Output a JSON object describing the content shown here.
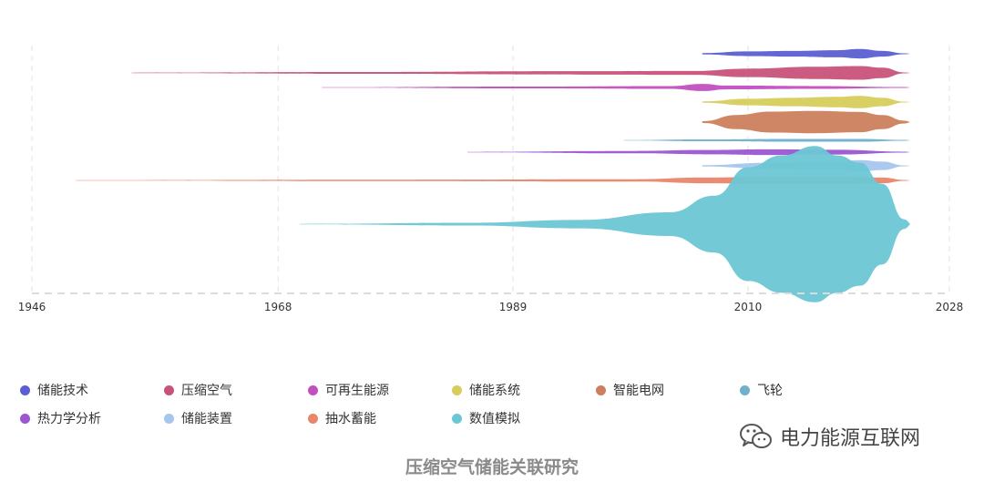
{
  "chart_data": {
    "type": "streamgraph",
    "title": "",
    "xlabel": "",
    "ylabel": "",
    "xlim": [
      1946,
      2028
    ],
    "x_ticks": [
      "1946",
      "1968",
      "1989",
      "2010",
      "2028"
    ],
    "grid": true,
    "legend_position": "bottom",
    "series": [
      {
        "name": "储能技术",
        "color": "#5b5fd2",
        "start": 2006,
        "points": [
          [
            2006,
            0.3
          ],
          [
            2010,
            1.0
          ],
          [
            2014,
            1.2
          ],
          [
            2018,
            1.5
          ],
          [
            2020,
            2.0
          ],
          [
            2022,
            1.2
          ],
          [
            2024,
            0.2
          ]
        ]
      },
      {
        "name": "压缩空气",
        "color": "#c9527a",
        "start": 1955,
        "points": [
          [
            1955,
            0.1
          ],
          [
            1975,
            0.4
          ],
          [
            1995,
            0.7
          ],
          [
            2005,
            0.8
          ],
          [
            2010,
            1.8
          ],
          [
            2016,
            2.6
          ],
          [
            2020,
            2.9
          ],
          [
            2022,
            2.2
          ],
          [
            2024,
            0.2
          ]
        ]
      },
      {
        "name": "可再生能源",
        "color": "#c24fbf",
        "start": 1972,
        "points": [
          [
            1972,
            0.1
          ],
          [
            1990,
            0.4
          ],
          [
            2003,
            0.6
          ],
          [
            2006,
            1.5
          ],
          [
            2008,
            0.8
          ],
          [
            2016,
            0.6
          ],
          [
            2024,
            0.2
          ]
        ]
      },
      {
        "name": "储能系统",
        "color": "#d6cd5a",
        "start": 2006,
        "points": [
          [
            2006,
            0.3
          ],
          [
            2010,
            1.4
          ],
          [
            2014,
            1.8
          ],
          [
            2018,
            2.2
          ],
          [
            2020,
            2.6
          ],
          [
            2022,
            1.8
          ],
          [
            2024,
            0.2
          ]
        ]
      },
      {
        "name": "智能电网",
        "color": "#cc7f5c",
        "start": 2006,
        "points": [
          [
            2006,
            0.4
          ],
          [
            2009,
            3.0
          ],
          [
            2012,
            4.4
          ],
          [
            2016,
            4.7
          ],
          [
            2020,
            4.3
          ],
          [
            2022,
            3.0
          ],
          [
            2024,
            0.6
          ]
        ]
      },
      {
        "name": "飞轮",
        "color": "#6fb0cc",
        "start": 1999,
        "points": [
          [
            1999,
            0.1
          ],
          [
            2006,
            0.4
          ],
          [
            2014,
            0.6
          ],
          [
            2020,
            0.6
          ],
          [
            2024,
            0.2
          ]
        ]
      },
      {
        "name": "热力学分析",
        "color": "#9b56d0",
        "start": 1985,
        "points": [
          [
            1985,
            0.1
          ],
          [
            2000,
            0.5
          ],
          [
            2006,
            0.9
          ],
          [
            2012,
            1.2
          ],
          [
            2018,
            1.0
          ],
          [
            2024,
            0.2
          ]
        ]
      },
      {
        "name": "储能装置",
        "color": "#a6c6ee",
        "start": 2006,
        "points": [
          [
            2006,
            0.3
          ],
          [
            2012,
            1.3
          ],
          [
            2018,
            1.7
          ],
          [
            2020,
            2.4
          ],
          [
            2022,
            1.8
          ],
          [
            2024,
            0.2
          ]
        ]
      },
      {
        "name": "抽水蓄能",
        "color": "#e9856a",
        "start": 1950,
        "points": [
          [
            1950,
            0.1
          ],
          [
            1980,
            0.3
          ],
          [
            2000,
            0.5
          ],
          [
            2006,
            1.2
          ],
          [
            2012,
            1.6
          ],
          [
            2018,
            1.6
          ],
          [
            2022,
            1.2
          ],
          [
            2024,
            0.2
          ]
        ]
      },
      {
        "name": "数值模拟",
        "color": "#6cc7d4",
        "start": 1970,
        "points": [
          [
            1970,
            0.1
          ],
          [
            1985,
            0.6
          ],
          [
            1995,
            1.8
          ],
          [
            2003,
            5.0
          ],
          [
            2007,
            12.0
          ],
          [
            2010,
            24.0
          ],
          [
            2013,
            29.0
          ],
          [
            2016,
            33.0
          ],
          [
            2018,
            29.0
          ],
          [
            2020,
            26.0
          ],
          [
            2022,
            17.0
          ],
          [
            2024,
            2.0
          ]
        ]
      }
    ]
  },
  "caption": "压缩空气储能关联研究",
  "watermark": {
    "text": "电力能源互联网",
    "icon": "wechat-icon"
  }
}
